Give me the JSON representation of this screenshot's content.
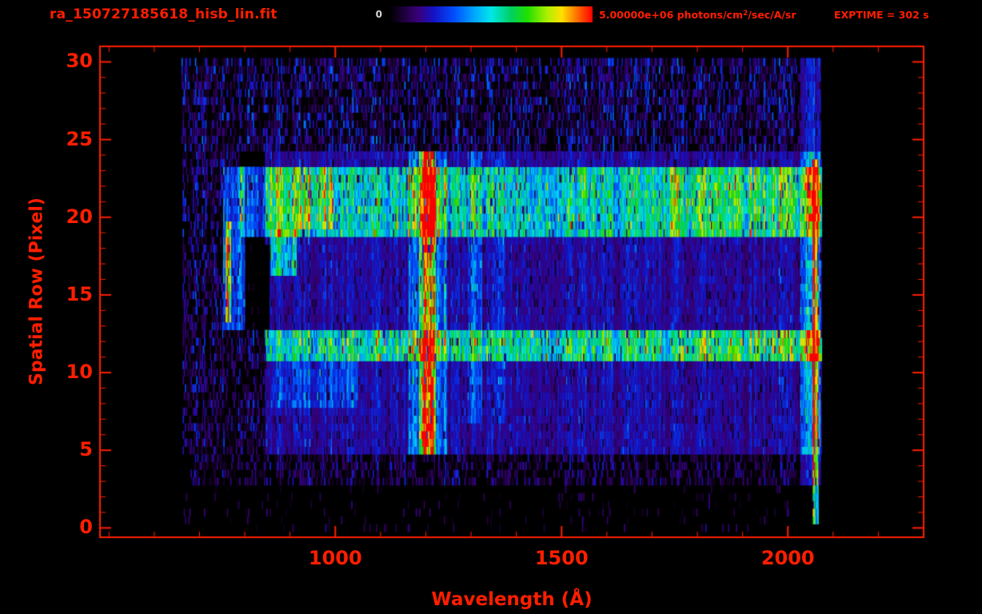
{
  "header": {
    "title": "ra_150727185618_hisb_lin.fit",
    "colorbar": {
      "min_label": "0",
      "max_prefix": "5.00000e+06 photons/cm",
      "max_sup": "2",
      "max_suffix": "/sec/A/sr"
    },
    "exptime": "EXPTIME = 302 s"
  },
  "colors": {
    "accent_red": "#ff1e00",
    "text_light": "#d8d8d8",
    "background": "#000000"
  },
  "chart_data": {
    "type": "heatmap",
    "title": "ra_150727185618_hisb_lin.fit",
    "xlabel": "Wavelength (Å)",
    "ylabel": "Spatial Row (Pixel)",
    "x_range": [
      480,
      2300
    ],
    "y_range": [
      -0.6,
      31.0
    ],
    "x_ticks": [
      1000,
      1500,
      2000
    ],
    "x_minor_step": 100,
    "y_ticks": [
      0,
      5,
      10,
      15,
      20,
      25,
      30
    ],
    "y_minor_step": 1,
    "grid": false,
    "legend": "none",
    "colorbar_min": 0,
    "colorbar_max": 5000000,
    "units": "photons/cm2/sec/A/sr",
    "exptime_seconds": 302,
    "data_extent": {
      "wavelength": [
        650,
        2075
      ],
      "rows": [
        0,
        30
      ]
    },
    "bin_width_angstrom": 2.5,
    "row_substep": 0.5,
    "seed": 42,
    "colormap": [
      {
        "t": 0.0,
        "c": "#000000"
      },
      {
        "t": 0.06,
        "c": "#1a0033"
      },
      {
        "t": 0.14,
        "c": "#3a007a"
      },
      {
        "t": 0.22,
        "c": "#1414c8"
      },
      {
        "t": 0.32,
        "c": "#0050ff"
      },
      {
        "t": 0.42,
        "c": "#00a8ff"
      },
      {
        "t": 0.5,
        "c": "#00e8e8"
      },
      {
        "t": 0.6,
        "c": "#00d060"
      },
      {
        "t": 0.68,
        "c": "#20e000"
      },
      {
        "t": 0.78,
        "c": "#b0f000"
      },
      {
        "t": 0.85,
        "c": "#ffe000"
      },
      {
        "t": 0.92,
        "c": "#ff7800"
      },
      {
        "t": 1.0,
        "c": "#ff0000"
      }
    ],
    "features": [
      {
        "name": "diffuse-region",
        "kind": "band",
        "rows": [
          4.8,
          24.2
        ],
        "x": [
          845,
          2075
        ],
        "level": 0.18
      },
      {
        "name": "lower-left-diffuse",
        "kind": "band",
        "rows": [
          7.6,
          10.7
        ],
        "x": [
          860,
          1050
        ],
        "level": 0.1
      },
      {
        "name": "mid-bright-band",
        "kind": "band",
        "rows": [
          10.8,
          12.9
        ],
        "x": [
          845,
          2075
        ],
        "level": 0.34
      },
      {
        "name": "mid-band-right-boost",
        "kind": "band",
        "rows": [
          10.9,
          12.7
        ],
        "x": [
          1760,
          2075
        ],
        "level": 0.1
      },
      {
        "name": "upper-bright-band",
        "kind": "band",
        "rows": [
          18.8,
          23.3
        ],
        "x": [
          790,
          2075
        ],
        "level": 0.3
      },
      {
        "name": "upper-band-left-hotspot",
        "kind": "band",
        "rows": [
          19.3,
          23.1
        ],
        "x": [
          848,
          995
        ],
        "level": 0.17
      },
      {
        "name": "upper-band-right-boost",
        "kind": "band",
        "rows": [
          18.9,
          23.2
        ],
        "x": [
          1720,
          2075
        ],
        "level": 0.13
      },
      {
        "name": "right-green-columns",
        "kind": "band",
        "rows": [
          3.0,
          30.2
        ],
        "x": [
          2028,
          2072
        ],
        "level": 0.22
      },
      {
        "name": "right-edge-red-line",
        "kind": "band",
        "rows": [
          0.3,
          23.8
        ],
        "x": [
          2056,
          2068
        ],
        "level": 0.55
      },
      {
        "name": "lyman-alpha-glow",
        "kind": "band",
        "rows": [
          4.9,
          24.2
        ],
        "x": [
          1163,
          1247
        ],
        "level": 0.15
      },
      {
        "name": "lyman-alpha-line",
        "kind": "band",
        "rows": [
          4.8,
          24.3
        ],
        "x": [
          1186,
          1222
        ],
        "level": 0.35
      },
      {
        "name": "lyman-alpha-core-lower",
        "kind": "band",
        "rows": [
          4.9,
          9.6
        ],
        "x": [
          1190,
          1218
        ],
        "level": 0.38
      },
      {
        "name": "lyman-alpha-core-mid",
        "kind": "band",
        "rows": [
          9.6,
          17.8
        ],
        "x": [
          1196,
          1212
        ],
        "level": 0.28
      },
      {
        "name": "lyman-alpha-core-upper",
        "kind": "band",
        "rows": [
          17.8,
          24.2
        ],
        "x": [
          1193,
          1215
        ],
        "level": 0.34
      },
      {
        "name": "feature-770-wing",
        "kind": "band",
        "rows": [
          12.9,
          23.4
        ],
        "x": [
          752,
          800
        ],
        "level": 0.34
      },
      {
        "name": "feature-770-core",
        "kind": "band",
        "rows": [
          13.2,
          19.6
        ],
        "x": [
          757,
          771
        ],
        "level": 0.55
      },
      {
        "name": "green-blob-880",
        "kind": "band",
        "rows": [
          16.4,
          19.4
        ],
        "x": [
          858,
          915
        ],
        "level": 0.3
      },
      {
        "name": "oi-1304-stripe",
        "kind": "band",
        "rows": [
          7.0,
          24.2
        ],
        "x": [
          1293,
          1325
        ],
        "level": 0.14
      },
      {
        "name": "stripe-1360",
        "kind": "band",
        "rows": [
          7.0,
          24.2
        ],
        "x": [
          1350,
          1376
        ],
        "level": 0.1
      },
      {
        "name": "dark-gap",
        "kind": "mask",
        "rows": [
          12.9,
          18.4
        ],
        "x": [
          800,
          856
        ]
      },
      {
        "name": "background-speckle-top",
        "kind": "speckle",
        "rows": [
          24.2,
          30.4
        ],
        "x": [
          660,
          2075
        ],
        "density": 0.55,
        "max": 0.3
      },
      {
        "name": "background-speckle-bottom",
        "kind": "speckle",
        "rows": [
          2.6,
          4.8
        ],
        "x": [
          680,
          2075
        ],
        "density": 0.45,
        "max": 0.22
      },
      {
        "name": "background-speckle-floor",
        "kind": "speckle",
        "rows": [
          0.0,
          2.6
        ],
        "x": [
          660,
          2075
        ],
        "density": 0.05,
        "max": 0.15
      },
      {
        "name": "left-margin-speckle-low",
        "kind": "speckle",
        "rows": [
          4.8,
          12.9
        ],
        "x": [
          662,
          845
        ],
        "density": 0.5,
        "max": 0.26
      },
      {
        "name": "left-margin-speckle-mid",
        "kind": "speckle",
        "rows": [
          12.9,
          18.8
        ],
        "x": [
          662,
          752
        ],
        "density": 0.5,
        "max": 0.28
      },
      {
        "name": "left-margin-speckle-upper",
        "kind": "speckle",
        "rows": [
          18.8,
          23.3
        ],
        "x": [
          662,
          790
        ],
        "density": 0.5,
        "max": 0.28
      },
      {
        "name": "left-margin-speckle-row23",
        "kind": "speckle",
        "rows": [
          23.3,
          24.2
        ],
        "x": [
          662,
          790
        ],
        "density": 0.5,
        "max": 0.28
      }
    ]
  }
}
